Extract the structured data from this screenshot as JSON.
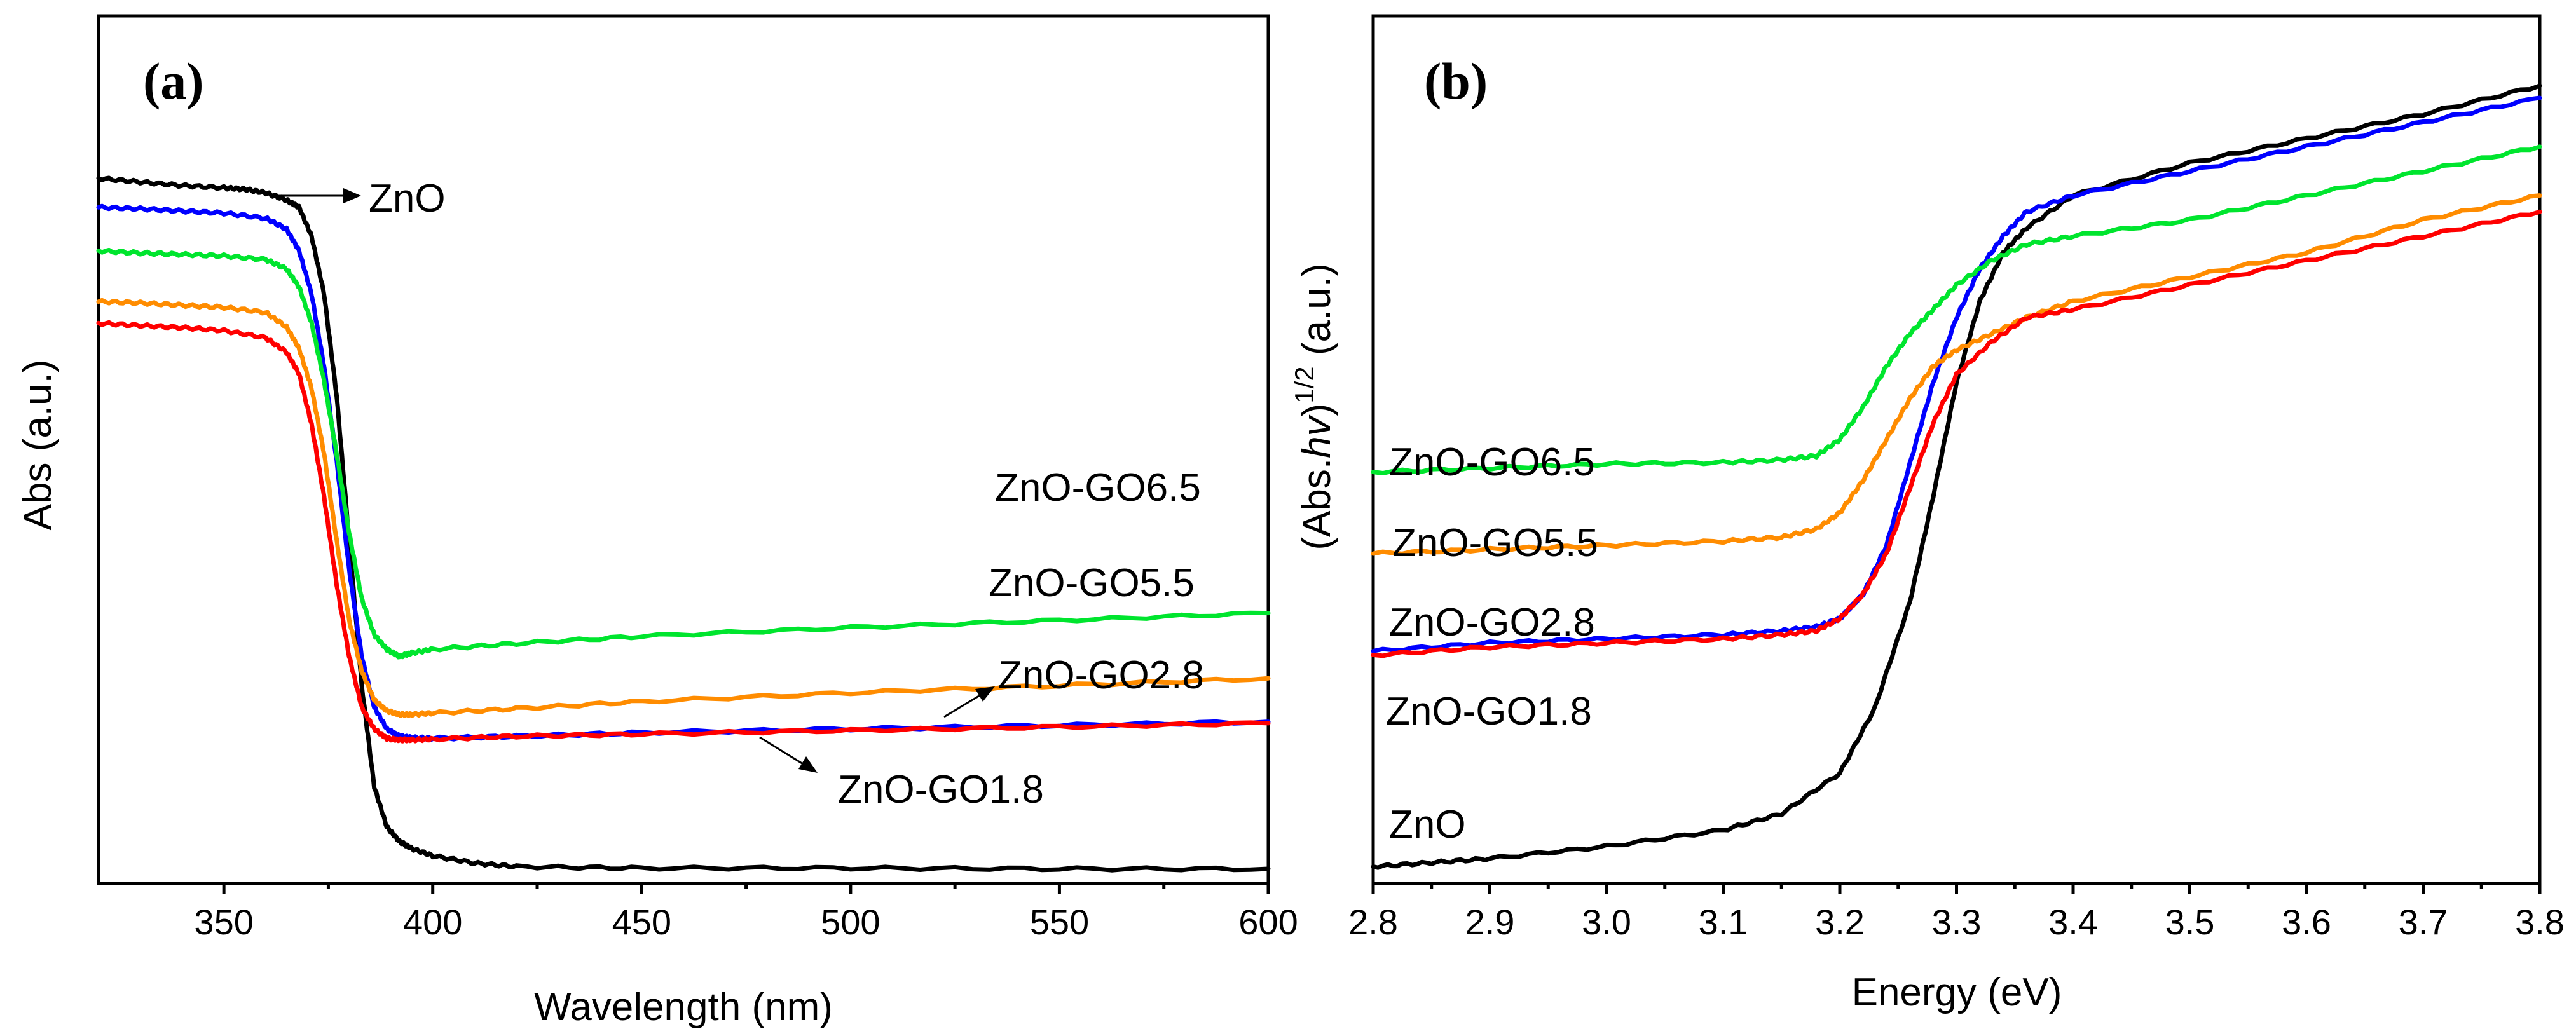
{
  "figure": {
    "background": "#ffffff"
  },
  "chart_data": [
    {
      "panel": "(a)",
      "type": "line",
      "xlabel": "Wavelength (nm)",
      "ylabel": "Abs (a.u.)",
      "xlim": [
        320,
        600
      ],
      "ylim": [
        0,
        1.0
      ],
      "xticks": [
        350,
        400,
        450,
        500,
        550,
        600
      ],
      "xticklabels": [
        "350",
        "400",
        "450",
        "500",
        "550",
        "600"
      ],
      "yticks_shown": false,
      "series": [
        {
          "name": "ZnO",
          "color": "#000000",
          "x": [
            320,
            330,
            340,
            350,
            355,
            360,
            365,
            368,
            371,
            374,
            377,
            380,
            383,
            386,
            389,
            392,
            395,
            400,
            410,
            420,
            450,
            500,
            550,
            600
          ],
          "y": [
            0.96,
            0.955,
            0.95,
            0.947,
            0.945,
            0.94,
            0.93,
            0.92,
            0.88,
            0.8,
            0.66,
            0.46,
            0.26,
            0.12,
            0.065,
            0.045,
            0.035,
            0.025,
            0.015,
            0.01,
            0.008,
            0.008,
            0.007,
            0.007
          ]
        },
        {
          "name": "ZnO-GO2.8",
          "color": "#0000ff",
          "x": [
            320,
            330,
            340,
            350,
            360,
            365,
            368,
            371,
            374,
            377,
            380,
            383,
            386,
            389,
            392,
            395,
            400,
            420,
            450,
            500,
            550,
            600
          ],
          "y": [
            0.92,
            0.918,
            0.915,
            0.912,
            0.905,
            0.89,
            0.86,
            0.8,
            0.7,
            0.57,
            0.42,
            0.3,
            0.23,
            0.2,
            0.19,
            0.188,
            0.187,
            0.19,
            0.195,
            0.2,
            0.205,
            0.21
          ]
        },
        {
          "name": "ZnO-GO6.5",
          "color": "#00e52e",
          "x": [
            320,
            330,
            340,
            350,
            360,
            365,
            368,
            371,
            374,
            377,
            380,
            383,
            386,
            389,
            392,
            395,
            400,
            420,
            450,
            500,
            550,
            600
          ],
          "y": [
            0.86,
            0.857,
            0.855,
            0.853,
            0.848,
            0.835,
            0.81,
            0.76,
            0.68,
            0.58,
            0.47,
            0.38,
            0.33,
            0.31,
            0.3,
            0.305,
            0.31,
            0.318,
            0.328,
            0.34,
            0.35,
            0.36
          ]
        },
        {
          "name": "ZnO-GO5.5",
          "color": "#ff8c00",
          "x": [
            320,
            330,
            340,
            350,
            360,
            365,
            368,
            371,
            374,
            377,
            380,
            383,
            386,
            389,
            392,
            395,
            400,
            420,
            450,
            500,
            550,
            600
          ],
          "y": [
            0.79,
            0.788,
            0.785,
            0.782,
            0.775,
            0.755,
            0.725,
            0.67,
            0.58,
            0.46,
            0.35,
            0.28,
            0.24,
            0.225,
            0.22,
            0.22,
            0.222,
            0.228,
            0.238,
            0.25,
            0.26,
            0.27
          ]
        },
        {
          "name": "ZnO-GO1.8",
          "color": "#ff0000",
          "x": [
            320,
            330,
            340,
            350,
            360,
            365,
            368,
            371,
            374,
            377,
            380,
            383,
            386,
            389,
            392,
            395,
            400,
            420,
            450,
            500,
            550,
            600
          ],
          "y": [
            0.76,
            0.757,
            0.754,
            0.75,
            0.74,
            0.72,
            0.69,
            0.62,
            0.52,
            0.4,
            0.3,
            0.23,
            0.2,
            0.187,
            0.185,
            0.185,
            0.186,
            0.19,
            0.193,
            0.198,
            0.203,
            0.208
          ]
        }
      ],
      "annotations": [
        {
          "text": "ZnO",
          "arrow": true
        },
        {
          "text": "ZnO-GO6.5",
          "arrow": false
        },
        {
          "text": "ZnO-GO5.5",
          "arrow": false
        },
        {
          "text": "ZnO-GO2.8",
          "arrow": true
        },
        {
          "text": "ZnO-GO1.8",
          "arrow": true
        }
      ]
    },
    {
      "panel": "(b)",
      "type": "line",
      "xlabel": "Energy (eV)",
      "ylabel_main": "(Abs.",
      "ylabel_italic": "hv",
      "ylabel_close": ")",
      "ylabel_sup": "1/2",
      "ylabel_units": " (a.u.)",
      "xlim": [
        2.8,
        3.8
      ],
      "ylim": [
        0,
        1.0
      ],
      "xticks": [
        2.8,
        2.9,
        3.0,
        3.1,
        3.2,
        3.3,
        3.4,
        3.5,
        3.6,
        3.7,
        3.8
      ],
      "xticklabels": [
        "2.8",
        "2.9",
        "3.0",
        "3.1",
        "3.2",
        "3.3",
        "3.4",
        "3.5",
        "3.6",
        "3.7",
        "3.8"
      ],
      "yticks_shown": false,
      "series": [
        {
          "name": "ZnO",
          "color": "#000000",
          "x": [
            2.8,
            2.85,
            2.9,
            3.0,
            3.1,
            3.15,
            3.2,
            3.23,
            3.26,
            3.28,
            3.3,
            3.32,
            3.34,
            3.36,
            3.4,
            3.5,
            3.6,
            3.7,
            3.8
          ],
          "y": [
            0.005,
            0.01,
            0.015,
            0.03,
            0.05,
            0.07,
            0.12,
            0.2,
            0.33,
            0.46,
            0.6,
            0.7,
            0.76,
            0.79,
            0.83,
            0.87,
            0.9,
            0.93,
            0.965
          ]
        },
        {
          "name": "ZnO-GO2.8",
          "color": "#0000ff",
          "x": [
            2.8,
            2.9,
            3.0,
            3.1,
            3.15,
            3.18,
            3.2,
            3.22,
            3.24,
            3.26,
            3.28,
            3.3,
            3.32,
            3.34,
            3.36,
            3.4,
            3.5,
            3.6,
            3.7,
            3.8
          ],
          "y": [
            0.27,
            0.28,
            0.285,
            0.29,
            0.295,
            0.3,
            0.31,
            0.34,
            0.4,
            0.5,
            0.6,
            0.68,
            0.74,
            0.78,
            0.81,
            0.83,
            0.86,
            0.89,
            0.92,
            0.95
          ]
        },
        {
          "name": "ZnO-GO6.5",
          "color": "#00e52e",
          "x": [
            2.8,
            2.9,
            3.0,
            3.1,
            3.15,
            3.18,
            3.2,
            3.22,
            3.24,
            3.26,
            3.28,
            3.3,
            3.33,
            3.36,
            3.4,
            3.5,
            3.6,
            3.7,
            3.8
          ],
          "y": [
            0.49,
            0.495,
            0.5,
            0.502,
            0.505,
            0.51,
            0.53,
            0.57,
            0.62,
            0.66,
            0.69,
            0.72,
            0.75,
            0.77,
            0.78,
            0.8,
            0.83,
            0.86,
            0.89
          ]
        },
        {
          "name": "ZnO-GO5.5",
          "color": "#ff8c00",
          "x": [
            2.8,
            2.9,
            3.0,
            3.1,
            3.15,
            3.18,
            3.2,
            3.22,
            3.24,
            3.26,
            3.28,
            3.3,
            3.33,
            3.36,
            3.4,
            3.5,
            3.6,
            3.7,
            3.8
          ],
          "y": [
            0.39,
            0.395,
            0.4,
            0.405,
            0.41,
            0.42,
            0.44,
            0.48,
            0.53,
            0.58,
            0.62,
            0.64,
            0.66,
            0.68,
            0.7,
            0.73,
            0.76,
            0.8,
            0.83
          ]
        },
        {
          "name": "ZnO-GO1.8",
          "color": "#ff0000",
          "x": [
            2.8,
            2.9,
            3.0,
            3.1,
            3.15,
            3.18,
            3.2,
            3.22,
            3.24,
            3.26,
            3.28,
            3.3,
            3.33,
            3.36,
            3.4,
            3.5,
            3.6,
            3.7,
            3.8
          ],
          "y": [
            0.265,
            0.275,
            0.28,
            0.285,
            0.29,
            0.295,
            0.31,
            0.34,
            0.39,
            0.47,
            0.55,
            0.61,
            0.65,
            0.68,
            0.69,
            0.72,
            0.75,
            0.78,
            0.81
          ]
        }
      ],
      "annotations": [
        {
          "text": "ZnO-GO6.5"
        },
        {
          "text": "ZnO-GO5.5"
        },
        {
          "text": "ZnO-GO2.8"
        },
        {
          "text": "ZnO-GO1.8"
        },
        {
          "text": "ZnO"
        }
      ]
    }
  ]
}
